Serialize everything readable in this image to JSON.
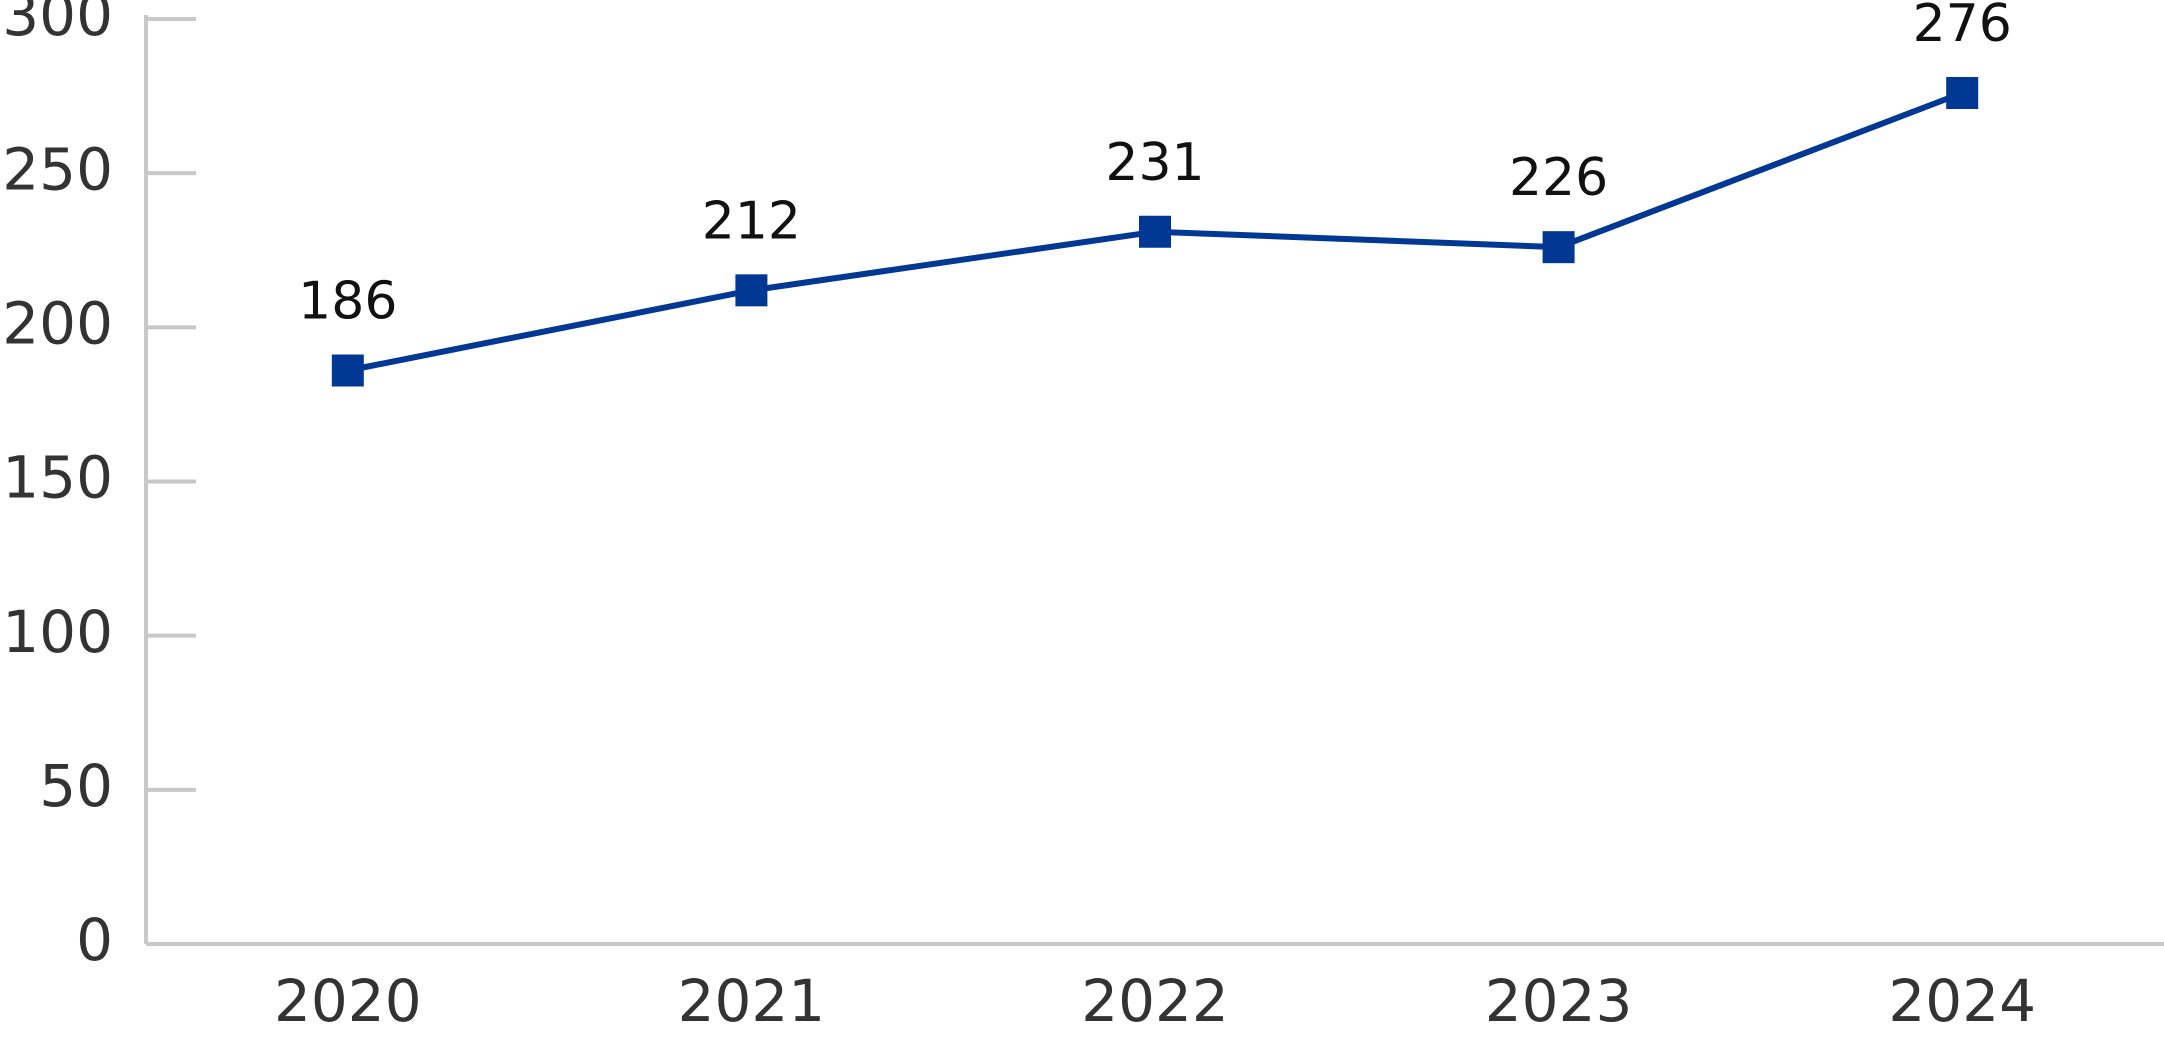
{
  "chart_data": {
    "type": "line",
    "categories": [
      "2020",
      "2021",
      "2022",
      "2023",
      "2024"
    ],
    "values": [
      186,
      212,
      231,
      226,
      276
    ],
    "color": "#003893",
    "ylim": [
      0,
      300
    ],
    "yticks": [
      0,
      50,
      100,
      150,
      200,
      250,
      300
    ],
    "grid": false
  }
}
